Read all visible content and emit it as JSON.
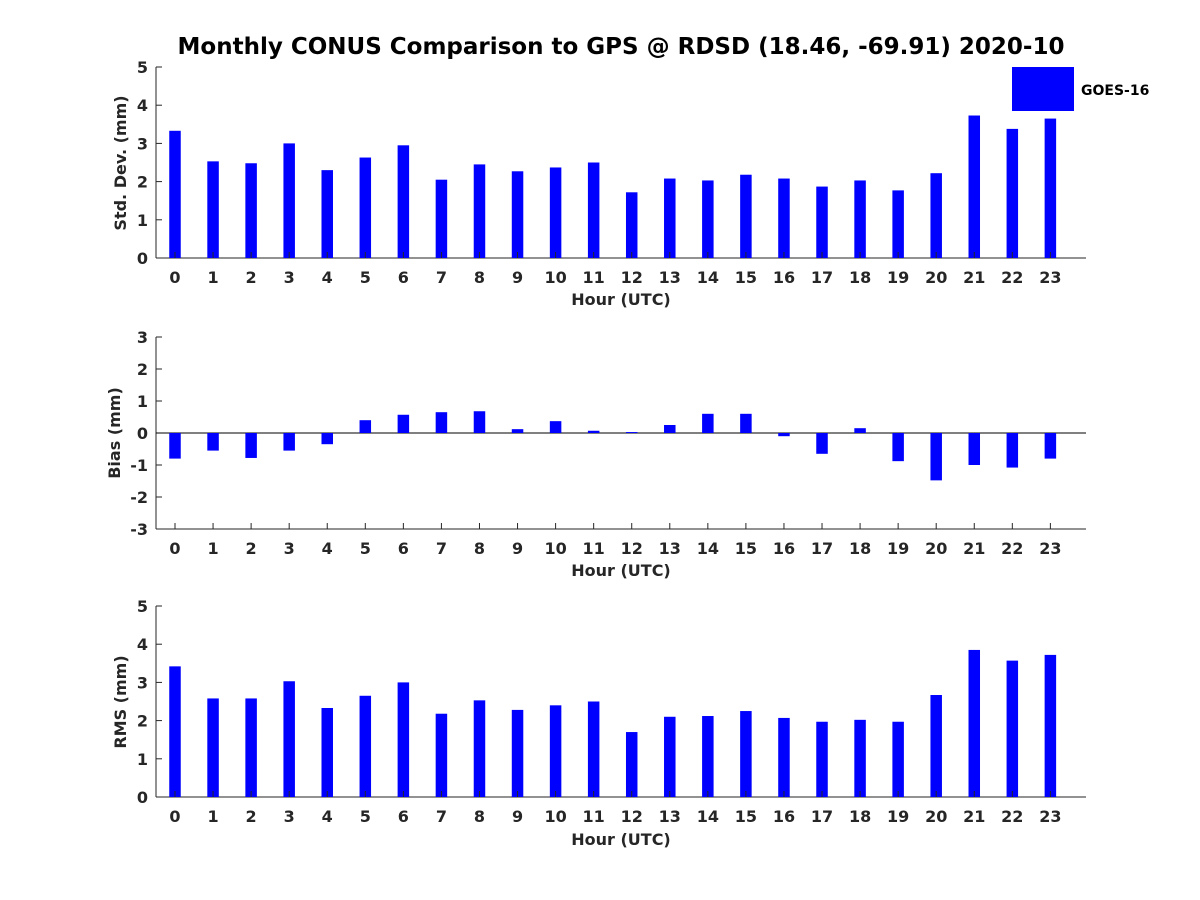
{
  "chart_data": {
    "title": "Monthly CONUS Comparison to GPS @ RDSD (18.46, -69.91) 2020-10",
    "legend": {
      "label": "GOES-16",
      "color": "#0000ff",
      "placement": "top-right"
    },
    "panels": [
      {
        "type": "bar",
        "xlabel": "Hour (UTC)",
        "ylabel": "Std. Dev. (mm)",
        "ylim": [
          0,
          5
        ],
        "yticks": [
          "0",
          "1",
          "2",
          "3",
          "4",
          "5"
        ],
        "categories": [
          "0",
          "1",
          "2",
          "3",
          "4",
          "5",
          "6",
          "7",
          "8",
          "9",
          "10",
          "11",
          "12",
          "13",
          "14",
          "15",
          "16",
          "17",
          "18",
          "19",
          "20",
          "21",
          "22",
          "23"
        ],
        "values": [
          3.33,
          2.53,
          2.48,
          3.0,
          2.3,
          2.63,
          2.95,
          2.05,
          2.45,
          2.27,
          2.37,
          2.5,
          1.72,
          2.08,
          2.03,
          2.18,
          2.08,
          1.87,
          2.03,
          1.77,
          2.22,
          3.73,
          3.38,
          3.65
        ]
      },
      {
        "type": "bar",
        "xlabel": "Hour (UTC)",
        "ylabel": "Bias (mm)",
        "ylim": [
          -3,
          3
        ],
        "yticks": [
          "-3",
          "-2",
          "-1",
          "0",
          "1",
          "2",
          "3"
        ],
        "categories": [
          "0",
          "1",
          "2",
          "3",
          "4",
          "5",
          "6",
          "7",
          "8",
          "9",
          "10",
          "11",
          "12",
          "13",
          "14",
          "15",
          "16",
          "17",
          "18",
          "19",
          "20",
          "21",
          "22",
          "23"
        ],
        "values": [
          -0.8,
          -0.55,
          -0.78,
          -0.55,
          -0.35,
          0.4,
          0.57,
          0.65,
          0.68,
          0.12,
          0.37,
          0.07,
          0.03,
          0.25,
          0.6,
          0.6,
          -0.1,
          -0.65,
          0.15,
          -0.88,
          -1.48,
          -1.0,
          -1.08,
          -0.8
        ]
      },
      {
        "type": "bar",
        "xlabel": "Hour (UTC)",
        "ylabel": "RMS (mm)",
        "ylim": [
          0,
          5
        ],
        "yticks": [
          "0",
          "1",
          "2",
          "3",
          "4",
          "5"
        ],
        "categories": [
          "0",
          "1",
          "2",
          "3",
          "4",
          "5",
          "6",
          "7",
          "8",
          "9",
          "10",
          "11",
          "12",
          "13",
          "14",
          "15",
          "16",
          "17",
          "18",
          "19",
          "20",
          "21",
          "22",
          "23"
        ],
        "values": [
          3.42,
          2.58,
          2.58,
          3.03,
          2.33,
          2.65,
          3.0,
          2.18,
          2.53,
          2.28,
          2.4,
          2.5,
          1.7,
          2.1,
          2.12,
          2.25,
          2.07,
          1.97,
          2.02,
          1.97,
          2.67,
          3.85,
          3.57,
          3.72
        ]
      }
    ]
  }
}
